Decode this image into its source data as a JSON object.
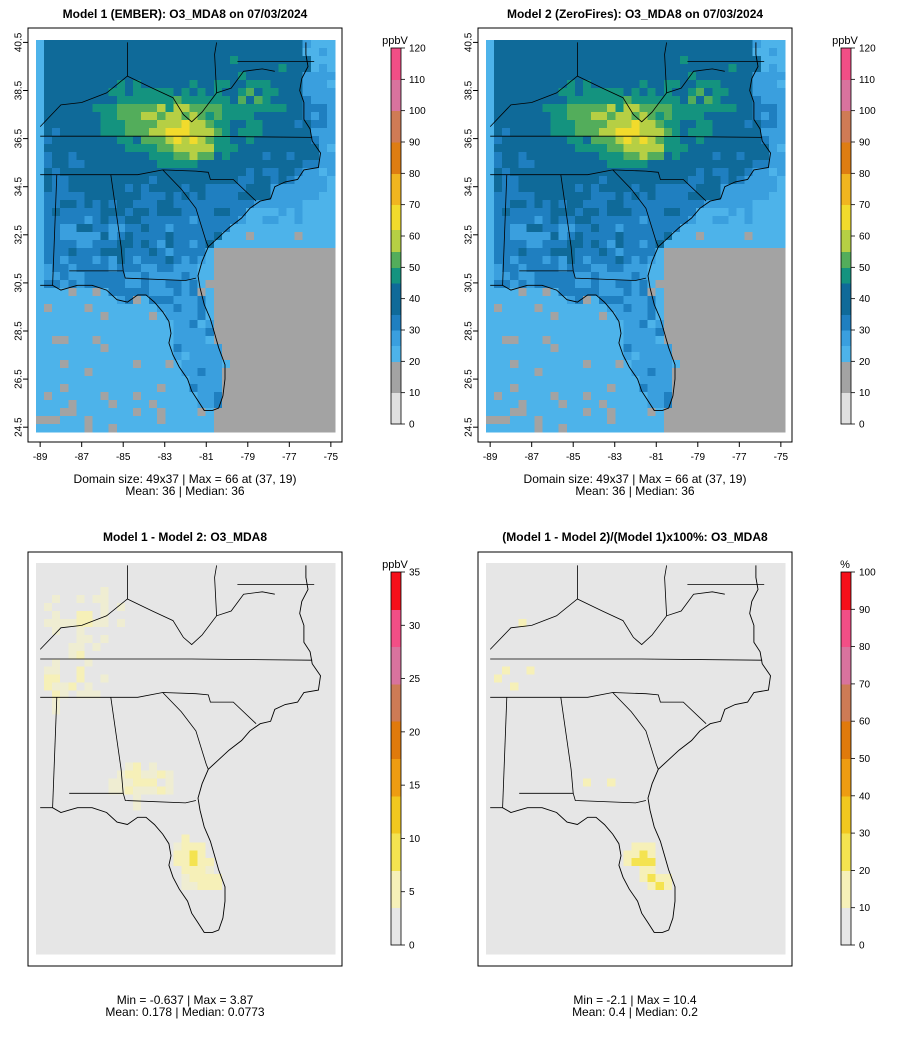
{
  "colors": {
    "ozone_scale": [
      "#e0e0e0",
      "#a3a3a3",
      "#4db3ea",
      "#3a9fde",
      "#1f7fc0",
      "#0f6a99",
      "#14937f",
      "#53ad5b",
      "#b6cf44",
      "#f1db2c",
      "#f0b520",
      "#de7d12",
      "#cf7b55",
      "#d8739e",
      "#f24e86",
      "#f50f1a"
    ],
    "diff_scale": [
      "#e6e6e6",
      "#f6f0b8",
      "#f4e350",
      "#f2c81f",
      "#ee9c12",
      "#e07a0c",
      "#cd7b55",
      "#d8739e",
      "#f24e86",
      "#f50f1a"
    ],
    "ocean": "#5aaee6",
    "diff_background": "#e6e6e6"
  },
  "chart_data": [
    {
      "type": "heatmap",
      "title": "Model 1 (EMBER): O3_MDA8 on 07/03/2024",
      "x_ticks": [
        "-89",
        "-87",
        "-85",
        "-83",
        "-81",
        "-79",
        "-77",
        "-75"
      ],
      "y_ticks": [
        "24.5",
        "26.5",
        "28.5",
        "30.5",
        "32.5",
        "34.5",
        "36.5",
        "38.5",
        "40.5"
      ],
      "xlim": [
        -89,
        -75
      ],
      "ylim": [
        24.5,
        40.5
      ],
      "colorbar": {
        "title": "ppbV",
        "ticks": [
          "0",
          "10",
          "20",
          "30",
          "40",
          "50",
          "60",
          "70",
          "80",
          "90",
          "100",
          "110",
          "120"
        ],
        "range": [
          0,
          120
        ]
      },
      "stats": [
        "Domain size: 49x37 | Max = 66 at (37, 19)",
        "Mean: 36 |  Median: 36"
      ],
      "domain_size": [
        49,
        37
      ],
      "max": 66,
      "max_at": [
        37,
        19
      ],
      "mean": 36,
      "median": 36
    },
    {
      "type": "heatmap",
      "title": "Model 2 (ZeroFires): O3_MDA8 on 07/03/2024",
      "x_ticks": [
        "-89",
        "-87",
        "-85",
        "-83",
        "-81",
        "-79",
        "-77",
        "-75"
      ],
      "y_ticks": [
        "24.5",
        "26.5",
        "28.5",
        "30.5",
        "32.5",
        "34.5",
        "36.5",
        "38.5",
        "40.5"
      ],
      "xlim": [
        -89,
        -75
      ],
      "ylim": [
        24.5,
        40.5
      ],
      "colorbar": {
        "title": "ppbV",
        "ticks": [
          "0",
          "10",
          "20",
          "30",
          "40",
          "50",
          "60",
          "70",
          "80",
          "90",
          "100",
          "110",
          "120"
        ],
        "range": [
          0,
          120
        ]
      },
      "stats": [
        "Domain size: 49x37 | Max = 66 at (37, 19)",
        "Mean: 36 |  Median: 36"
      ],
      "domain_size": [
        49,
        37
      ],
      "max": 66,
      "max_at": [
        37,
        19
      ],
      "mean": 36,
      "median": 36
    },
    {
      "type": "heatmap",
      "title": "Model 1 - Model 2: O3_MDA8",
      "colorbar": {
        "title": "ppbV",
        "ticks": [
          "0",
          "5",
          "10",
          "15",
          "20",
          "25",
          "30",
          "35"
        ],
        "range": [
          0,
          35
        ]
      },
      "stats": [
        "Min = -0.637 | Max = 3.87",
        "Mean: 0.178 |  Median: 0.0773"
      ],
      "min": -0.637,
      "max": 3.87,
      "mean": 0.178,
      "median": 0.0773
    },
    {
      "type": "heatmap",
      "title": "(Model 1 - Model 2)/(Model 1)x100%: O3_MDA8",
      "colorbar": {
        "title": "%",
        "ticks": [
          "0",
          "10",
          "20",
          "30",
          "40",
          "50",
          "60",
          "70",
          "80",
          "90",
          "100"
        ],
        "range": [
          0,
          100
        ]
      },
      "stats": [
        "Min = -2.1 | Max = 10.4",
        "Mean: 0.4 |  Median: 0.2"
      ],
      "min": -2.1,
      "max": 10.4,
      "mean": 0.4,
      "median": 0.2
    }
  ]
}
